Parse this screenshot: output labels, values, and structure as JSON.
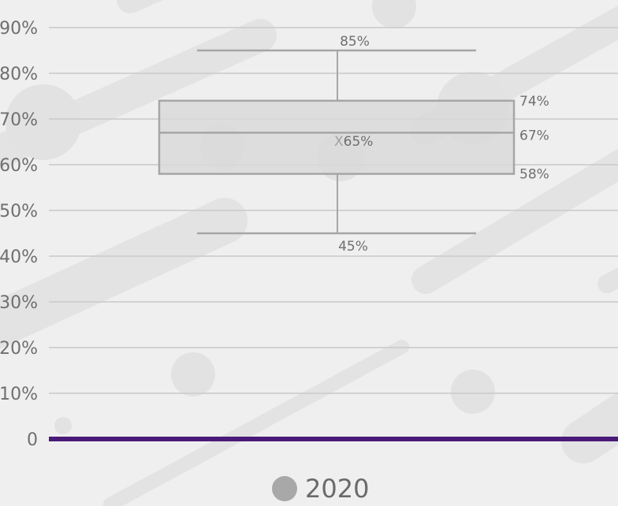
{
  "chart_data": {
    "type": "box",
    "y_ticks": [
      "0",
      "10%",
      "20%",
      "30%",
      "40%",
      "50%",
      "60%",
      "70%",
      "80%",
      "90%"
    ],
    "ylim": [
      0,
      90
    ],
    "grid": true,
    "legend_position": "bottom-center",
    "series": [
      {
        "name": "2020",
        "min": 45,
        "q1": 58,
        "median": 67,
        "q3": 74,
        "max": 85,
        "mean": 65,
        "color": "#a8a8a8"
      }
    ],
    "labels": {
      "max": "85%",
      "q3": "74%",
      "median": "67%",
      "q1": "58%",
      "min": "45%",
      "mean": "65%",
      "mean_marker": "X"
    }
  },
  "colors": {
    "background": "#efefef",
    "baseline": "#4a1a78",
    "gridline": "#c9c9c9",
    "box_fill": "#d9d9d9",
    "box_stroke": "#a6a6a6"
  },
  "legend": {
    "label": "2020"
  }
}
